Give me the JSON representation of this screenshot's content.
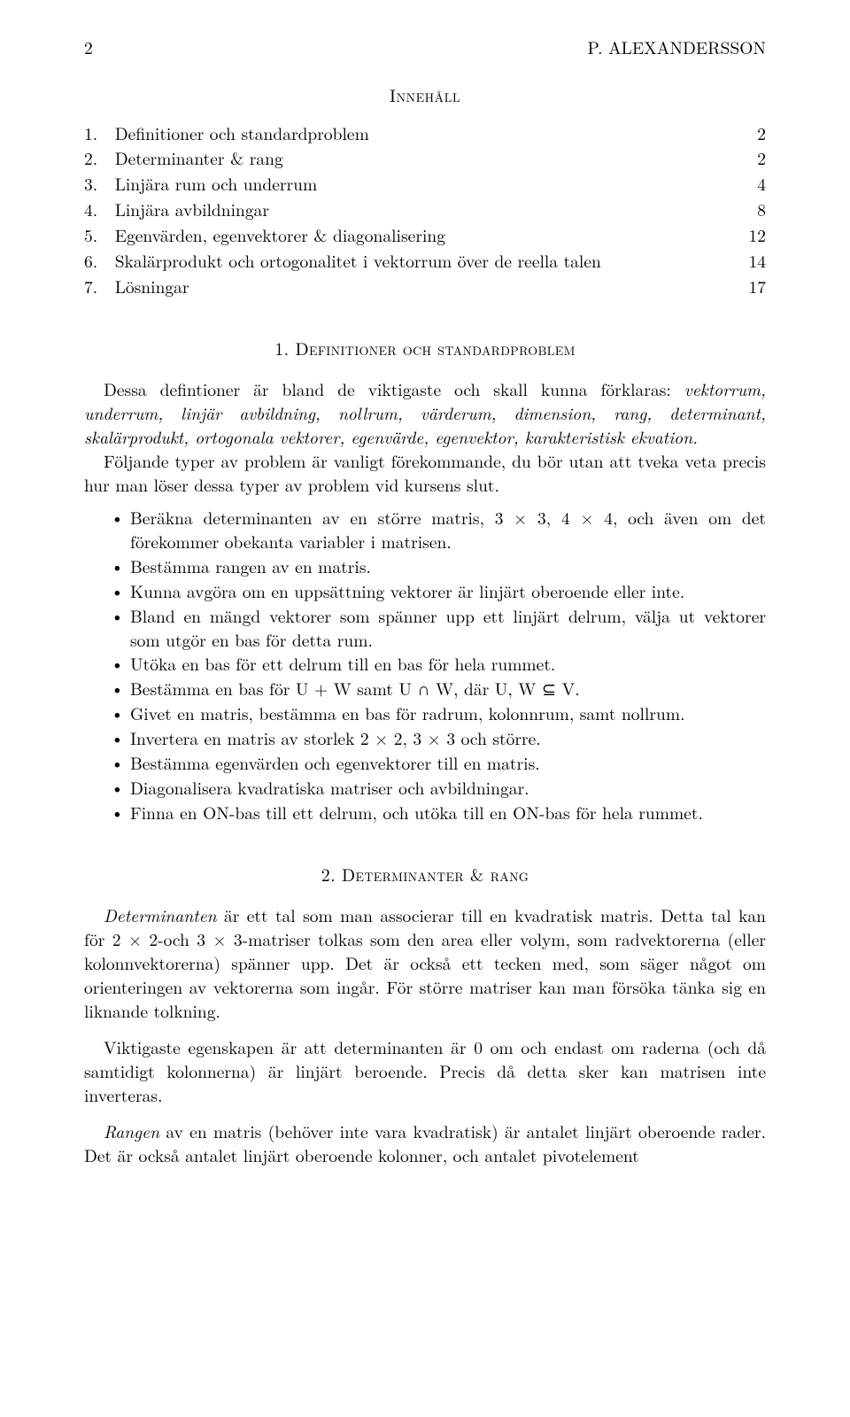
{
  "header": {
    "page_number": "2",
    "author": "P. ALEXANDERSSON"
  },
  "toc": {
    "title": "Innehåll",
    "items": [
      {
        "num": "1.",
        "label": "Definitioner och standardproblem",
        "page": "2"
      },
      {
        "num": "2.",
        "label": "Determinanter & rang",
        "page": "2"
      },
      {
        "num": "3.",
        "label": "Linjära rum och underrum",
        "page": "4"
      },
      {
        "num": "4.",
        "label": "Linjära avbildningar",
        "page": "8"
      },
      {
        "num": "5.",
        "label": "Egenvärden, egenvektorer & diagonalisering",
        "page": "12"
      },
      {
        "num": "6.",
        "label": "Skalärprodukt och ortogonalitet i vektorrum över de reella talen",
        "page": "14"
      },
      {
        "num": "7.",
        "label": "Lösningar",
        "page": "17"
      }
    ]
  },
  "section1": {
    "num": "1.",
    "title": "Definitioner och standardproblem",
    "para1_a": "Dessa defintioner är bland de viktigaste och skall kunna förklaras: ",
    "para1_b": "vektorrum, underrum, linjär avbildning, nollrum, värderum, dimension, rang, determinant, skalärprodukt, ortogonala vektorer, egenvärde, egenvektor, karakteristisk ekvation.",
    "para2": "Följande typer av problem är vanligt förekommande, du bör utan att tveka veta precis hur man löser dessa typer av problem vid kursens slut.",
    "bullets": [
      "Beräkna determinanten av en större matris, 3 × 3, 4 × 4, och även om det förekommer obekanta variabler i matrisen.",
      "Bestämma rangen av en matris.",
      "Kunna avgöra om en uppsättning vektorer är linjärt oberoende eller inte.",
      "Bland en mängd vektorer som spänner upp ett linjärt delrum, välja ut vektorer som utgör en bas för detta rum.",
      "Utöka en bas för ett delrum till en bas för hela rummet.",
      "Bestämma en bas för U + W samt U ∩ W, där U, W ⊆ V.",
      "Givet en matris, bestämma en bas för radrum, kolonnrum, samt nollrum.",
      "Invertera en matris av storlek 2 × 2, 3 × 3 och större.",
      "Bestämma egenvärden och egenvektorer till en matris.",
      "Diagonalisera kvadratiska matriser och avbildningar.",
      "Finna en ON-bas till ett delrum, och utöka till en ON-bas för hela rummet."
    ]
  },
  "section2": {
    "num": "2.",
    "title": "Determinanter & rang",
    "para1_a": "Determinanten",
    "para1_b": " är ett tal som man associerar till en kvadratisk matris. Detta tal kan för 2 × 2-och 3 × 3-matriser tolkas som den area eller volym, som radvektorerna (eller kolonnvektorerna) spänner upp. Det är också ett tecken med, som säger något om orienteringen av vektorerna som ingår. För större matriser kan man försöka tänka sig en liknande tolkning.",
    "para2": "Viktigaste egenskapen är att determinanten är 0 om och endast om raderna (och då samtidigt kolonnerna) är linjärt beroende. Precis då detta sker kan matrisen inte inverteras.",
    "para3_a": "Rangen",
    "para3_b": " av en matris (behöver inte vara kvadratisk) är antalet linjärt oberoende rader. Det är också antalet linjärt oberoende kolonner, och antalet pivotelement"
  }
}
